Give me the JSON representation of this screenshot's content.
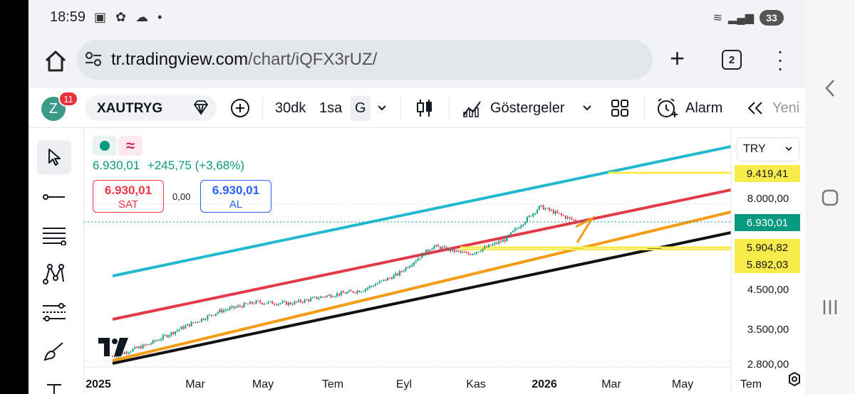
{
  "status_bar": {
    "time": "18:59",
    "battery": "33"
  },
  "browser": {
    "url_domain": "tr.tradingview.com",
    "url_path": "/chart/iQFX3rUZ/",
    "tab_count": "2"
  },
  "toolbar": {
    "avatar_letter": "Z",
    "notification_count": "11",
    "symbol": "XAUTRYG",
    "timeframes": [
      "30dk",
      "1sa",
      "G"
    ],
    "active_timeframe": "G",
    "indicators_label": "Göstergeler",
    "alert_label": "Alarm",
    "replay_label": "Yeni"
  },
  "legend": {
    "last_price": "6.930,01",
    "change": "+245,75 (+3,68%)",
    "sell_price": "6.930,01",
    "sell_label": "SAT",
    "spread": "0,00",
    "buy_price": "6.930,01",
    "buy_label": "AL"
  },
  "price_scale": {
    "currency": "TRY",
    "ticks": [
      "8.000,00",
      "4.500,00",
      "3.500,00",
      "2.800,00"
    ],
    "tags": [
      "9.419,41",
      "6.930,01",
      "5.904,82",
      "5.892,03"
    ]
  },
  "time_axis": [
    "2025",
    "Mar",
    "May",
    "Tem",
    "Eyl",
    "Kas",
    "2026",
    "Mar",
    "May",
    "Tem"
  ],
  "colors": {
    "up": "#089981",
    "down": "#f23645",
    "cyan_line": "#22b8cf",
    "red_line": "#e33a4a",
    "orange_line": "#f59b16",
    "black_line": "#111111",
    "yellow_line": "#f7ec4b"
  },
  "chart_data": {
    "type": "candlestick",
    "symbol": "XAUTRYG",
    "currency": "TRY",
    "ylim": [
      2800,
      10000
    ],
    "y_scale": "log",
    "x": [
      "2025-01",
      "2025-02",
      "2025-03",
      "2025-04",
      "2025-05",
      "2025-06",
      "2025-07",
      "2025-08",
      "2025-09",
      "2025-10",
      "2025-11",
      "2025-12",
      "2026-01",
      "2026-02"
    ],
    "close": [
      2950,
      3180,
      3550,
      3920,
      4150,
      4120,
      4320,
      4480,
      4950,
      5920,
      5620,
      6150,
      7600,
      6930
    ]
  }
}
